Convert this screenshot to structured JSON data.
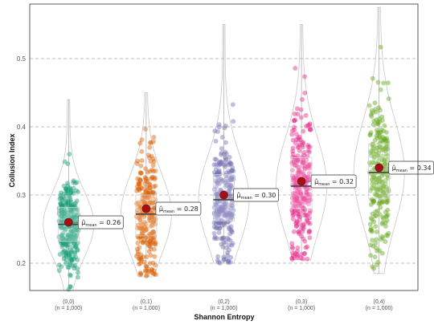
{
  "chart_data": {
    "type": "violin-box-scatter",
    "xlabel": "Shannon Entropy",
    "ylabel": "Collusion Index",
    "ylim": [
      0.16,
      0.58
    ],
    "yticks": [
      0.2,
      0.3,
      0.4,
      0.5
    ],
    "grid": "horizontal dashed",
    "legend": "none",
    "categories": [
      {
        "label": "(0,0)",
        "n_label": "(n = 1,000)",
        "color": "#1b9e77",
        "mean": 0.26,
        "mean_label": "0.26",
        "median": 0.257,
        "q1": 0.232,
        "q3": 0.282,
        "min": 0.16,
        "max": 0.44
      },
      {
        "label": "(0,1)",
        "n_label": "(n = 1,000)",
        "color": "#d95f02",
        "mean": 0.28,
        "mean_label": "0.28",
        "median": 0.272,
        "q1": 0.24,
        "q3": 0.3,
        "min": 0.18,
        "max": 0.45
      },
      {
        "label": "(0,2)",
        "n_label": "(n = 1,000)",
        "color": "#7570b3",
        "mean": 0.3,
        "mean_label": "0.30",
        "median": 0.293,
        "q1": 0.262,
        "q3": 0.33,
        "min": 0.2,
        "max": 0.55
      },
      {
        "label": "(0,3)",
        "n_label": "(n = 1,000)",
        "color": "#e7298a",
        "mean": 0.32,
        "mean_label": "0.32",
        "median": 0.313,
        "q1": 0.28,
        "q3": 0.355,
        "min": 0.205,
        "max": 0.55
      },
      {
        "label": "(0,4)",
        "n_label": "(n = 1,000)",
        "color": "#66a61e",
        "mean": 0.34,
        "mean_label": "0.34",
        "median": 0.333,
        "q1": 0.295,
        "q3": 0.375,
        "min": 0.185,
        "max": 0.575
      }
    ],
    "mean_symbol": "μ̂",
    "mean_subscript": "mean"
  }
}
